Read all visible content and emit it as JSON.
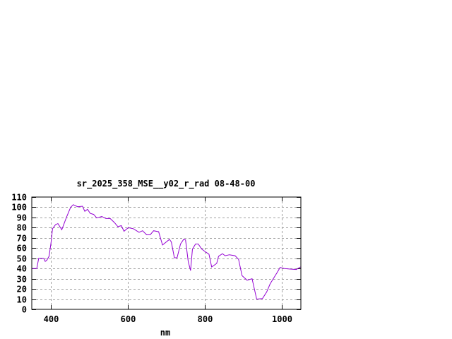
{
  "chart_data": {
    "type": "line",
    "title": "sr_2025_358_MSE__y02_r_rad 08-48-00",
    "xlabel": "nm",
    "ylabel": "",
    "xlim": [
      350,
      1050
    ],
    "ylim": [
      0,
      110
    ],
    "xticks": [
      400,
      600,
      800,
      1000
    ],
    "yticks": [
      0,
      10,
      20,
      30,
      40,
      50,
      60,
      70,
      80,
      90,
      100,
      110
    ],
    "grid": true,
    "line_color": "#9400d3",
    "series": [
      {
        "x": [
          350,
          363,
          368,
          381,
          385,
          389,
          395,
          400,
          404,
          412,
          418,
          428,
          440,
          451,
          458,
          469,
          482,
          488,
          495,
          502,
          511,
          519,
          532,
          543,
          554,
          565,
          574,
          583,
          590,
          601,
          614,
          629,
          638,
          649,
          658,
          667,
          680,
          690,
          708,
          713,
          721,
          728,
          737,
          745,
          750,
          757,
          763,
          768,
          776,
          783,
          792,
          803,
          811,
          818,
          831,
          836,
          846,
          853,
          864,
          879,
          888,
          897,
          910,
          923,
          935,
          950,
          961,
          970,
          989,
          996,
          1007,
          1020,
          1038,
          1049
        ],
        "y": [
          40,
          40,
          50,
          50,
          47,
          48,
          52,
          65,
          79,
          83,
          84,
          78,
          90,
          100,
          102.5,
          100.5,
          101,
          96,
          98,
          94,
          93,
          89.5,
          91,
          89,
          89,
          85,
          81,
          82,
          76.5,
          80,
          79,
          75.5,
          77,
          73,
          73,
          77,
          76,
          63,
          68.5,
          66,
          50.5,
          50.5,
          64,
          68.5,
          68,
          47,
          38,
          59,
          64,
          64,
          59,
          56,
          54,
          41.5,
          45,
          52,
          54.5,
          52.5,
          53.5,
          52.5,
          49,
          33,
          28.5,
          30,
          10,
          10.5,
          17,
          25,
          36.5,
          41,
          40,
          39.5,
          39,
          41.5
        ]
      }
    ]
  }
}
